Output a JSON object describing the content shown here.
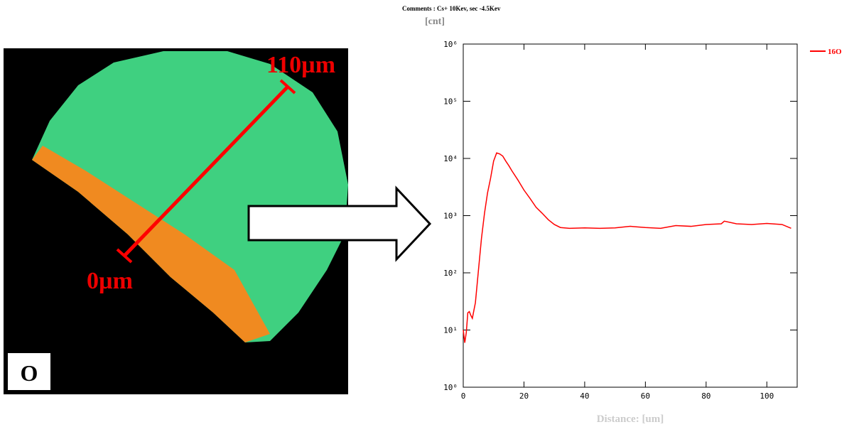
{
  "image": {
    "element_label": "O",
    "scale_start": "0µm",
    "scale_end": "110µm"
  },
  "chart_data": {
    "type": "line",
    "title": "Comments : Cs+ 10Kev, sec -4.5Kev",
    "y_label": "[cnt]",
    "x_label": "Distance: [um]",
    "x": [
      0,
      0.5,
      1,
      1.5,
      2,
      2.5,
      3,
      3.5,
      4,
      5,
      6,
      7,
      8,
      9,
      10,
      11,
      12,
      13,
      14,
      15,
      16,
      18,
      20,
      22,
      24,
      26,
      28,
      30,
      32,
      35,
      40,
      45,
      50,
      55,
      60,
      65,
      70,
      75,
      80,
      85,
      86,
      90,
      95,
      100,
      105,
      108
    ],
    "series": [
      {
        "name": "16O",
        "color": "#ff0000",
        "values": [
          10,
          6,
          9,
          20,
          21,
          18,
          16,
          22,
          30,
          110,
          400,
          1100,
          2500,
          4500,
          9000,
          12500,
          12000,
          11000,
          9000,
          7500,
          6100,
          4200,
          2800,
          2000,
          1400,
          1100,
          850,
          700,
          620,
          600,
          610,
          600,
          610,
          650,
          620,
          600,
          670,
          650,
          700,
          720,
          800,
          720,
          700,
          730,
          700,
          600
        ]
      }
    ],
    "xlim": [
      0,
      110
    ],
    "xticks": [
      0,
      20,
      40,
      60,
      80,
      100
    ],
    "ylim": [
      1,
      1000000
    ],
    "log_y": true,
    "yticks": [
      {
        "value": 1,
        "label": "10⁰"
      },
      {
        "value": 10,
        "label": "10¹"
      },
      {
        "value": 100,
        "label": "10²"
      },
      {
        "value": 1000,
        "label": "10³"
      },
      {
        "value": 10000,
        "label": "10⁴"
      },
      {
        "value": 100000,
        "label": "10⁵"
      },
      {
        "value": 1000000,
        "label": "10⁶"
      }
    ],
    "legend": "right"
  }
}
